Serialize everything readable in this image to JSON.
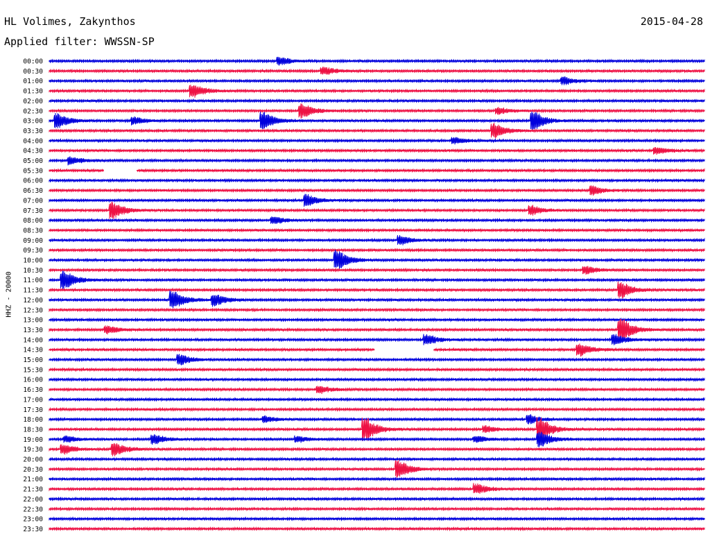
{
  "header": {
    "station": "HL Volimes, Zakynthos",
    "date": "2015-04-28",
    "filter": "Applied filter: WWSSN-SP"
  },
  "chart_data": {
    "type": "line",
    "title": "HL Volimes, Zakynthos",
    "subtitle": "Applied filter: WWSSN-SP",
    "date": "2015-04-28",
    "ylabel": "HHZ - 20000",
    "xlabel": "",
    "colors": [
      "#0000dd",
      "#ee1144"
    ],
    "row_minutes": 30,
    "grid": false,
    "legend": "none",
    "rows": [
      "00:00",
      "00:30",
      "01:00",
      "01:30",
      "02:00",
      "02:30",
      "03:00",
      "03:30",
      "04:00",
      "04:30",
      "05:00",
      "05:30",
      "06:00",
      "06:30",
      "07:00",
      "07:30",
      "08:00",
      "08:30",
      "09:00",
      "09:30",
      "10:00",
      "10:30",
      "11:00",
      "11:30",
      "12:00",
      "12:30",
      "13:00",
      "13:30",
      "14:00",
      "14:30",
      "15:00",
      "15:30",
      "16:00",
      "16:30",
      "17:00",
      "17:30",
      "18:00",
      "18:30",
      "19:00",
      "19:30",
      "20:00",
      "20:30",
      "21:00",
      "21:30",
      "22:00",
      "22:30",
      "23:00",
      "23:30"
    ],
    "events": [
      {
        "row": "00:00",
        "minute": 10.5,
        "amp": 5
      },
      {
        "row": "00:30",
        "minute": 12.5,
        "amp": 5
      },
      {
        "row": "01:00",
        "minute": 23.5,
        "amp": 5
      },
      {
        "row": "01:30",
        "minute": 6.5,
        "amp": 9
      },
      {
        "row": "02:30",
        "minute": 11.5,
        "amp": 10
      },
      {
        "row": "02:30",
        "minute": 20.5,
        "amp": 4
      },
      {
        "row": "03:00",
        "minute": 0.3,
        "amp": 10
      },
      {
        "row": "03:00",
        "minute": 3.8,
        "amp": 5
      },
      {
        "row": "03:00",
        "minute": 9.7,
        "amp": 12
      },
      {
        "row": "03:00",
        "minute": 22.1,
        "amp": 13
      },
      {
        "row": "03:30",
        "minute": 20.3,
        "amp": 10
      },
      {
        "row": "04:00",
        "minute": 18.5,
        "amp": 4
      },
      {
        "row": "04:30",
        "minute": 27.7,
        "amp": 5
      },
      {
        "row": "05:00",
        "minute": 0.9,
        "amp": 5
      },
      {
        "row": "06:30",
        "minute": 24.8,
        "amp": 6
      },
      {
        "row": "07:00",
        "minute": 11.7,
        "amp": 8
      },
      {
        "row": "07:30",
        "minute": 2.8,
        "amp": 12
      },
      {
        "row": "07:30",
        "minute": 22.0,
        "amp": 6
      },
      {
        "row": "08:00",
        "minute": 10.2,
        "amp": 5
      },
      {
        "row": "09:00",
        "minute": 16.0,
        "amp": 6
      },
      {
        "row": "10:00",
        "minute": 13.1,
        "amp": 14
      },
      {
        "row": "10:30",
        "minute": 24.5,
        "amp": 5
      },
      {
        "row": "11:00",
        "minute": 0.6,
        "amp": 13
      },
      {
        "row": "11:30",
        "minute": 26.1,
        "amp": 11
      },
      {
        "row": "12:00",
        "minute": 5.6,
        "amp": 13
      },
      {
        "row": "12:00",
        "minute": 7.5,
        "amp": 8
      },
      {
        "row": "13:30",
        "minute": 2.6,
        "amp": 5
      },
      {
        "row": "13:30",
        "minute": 26.1,
        "amp": 17
      },
      {
        "row": "14:00",
        "minute": 17.2,
        "amp": 7
      },
      {
        "row": "14:00",
        "minute": 25.8,
        "amp": 7
      },
      {
        "row": "14:30",
        "minute": 24.2,
        "amp": 9
      },
      {
        "row": "15:00",
        "minute": 5.9,
        "amp": 7
      },
      {
        "row": "16:30",
        "minute": 12.3,
        "amp": 5
      },
      {
        "row": "18:00",
        "minute": 9.8,
        "amp": 4
      },
      {
        "row": "18:00",
        "minute": 21.9,
        "amp": 6
      },
      {
        "row": "18:30",
        "minute": 14.4,
        "amp": 16
      },
      {
        "row": "18:30",
        "minute": 19.9,
        "amp": 4
      },
      {
        "row": "18:30",
        "minute": 22.4,
        "amp": 16
      },
      {
        "row": "19:00",
        "minute": 0.7,
        "amp": 4
      },
      {
        "row": "19:00",
        "minute": 4.7,
        "amp": 7
      },
      {
        "row": "19:00",
        "minute": 11.3,
        "amp": 4
      },
      {
        "row": "19:00",
        "minute": 19.5,
        "amp": 4
      },
      {
        "row": "19:00",
        "minute": 22.4,
        "amp": 10
      },
      {
        "row": "19:30",
        "minute": 0.6,
        "amp": 6
      },
      {
        "row": "19:30",
        "minute": 2.9,
        "amp": 9
      },
      {
        "row": "20:30",
        "minute": 15.9,
        "amp": 12
      },
      {
        "row": "21:30",
        "minute": 19.5,
        "amp": 7
      }
    ],
    "gaps": [
      {
        "row": "05:30",
        "start_min": 2.5,
        "end_min": 4.0
      },
      {
        "row": "14:30",
        "start_min": 14.9,
        "end_min": 17.6
      }
    ]
  }
}
